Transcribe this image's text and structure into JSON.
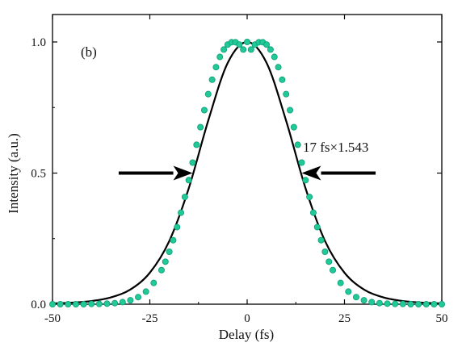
{
  "chart_data": {
    "type": "scatter",
    "panel_label": "(b)",
    "xlabel": "Delay (fs)",
    "ylabel": "Intensity (a.u.)",
    "xlim": [
      -50,
      50
    ],
    "ylim": [
      0,
      1.05
    ],
    "xticks": [
      -50,
      -25,
      0,
      25,
      50
    ],
    "xtick_labels": [
      "-50",
      "-25",
      "0",
      "25",
      "50"
    ],
    "yticks": [
      0.0,
      0.5,
      1.0
    ],
    "ytick_labels": [
      "0.0",
      "0.5",
      "1.0"
    ],
    "grid": false,
    "annotation": "17 fs×1.543",
    "arrows": [
      {
        "from": [
          -33,
          0.5
        ],
        "to": [
          -14,
          0.5
        ]
      },
      {
        "from": [
          33,
          0.5
        ],
        "to": [
          14,
          0.5
        ]
      }
    ],
    "series": [
      {
        "kind": "markers",
        "color": "#20c997",
        "x": [
          -50,
          -48,
          -46,
          -44,
          -42,
          -40,
          -38,
          -36,
          -34,
          -32,
          -30,
          -28,
          -26,
          -24,
          -22,
          -21,
          -20,
          -19,
          -18,
          -17,
          -16,
          -15,
          -14,
          -13,
          -12,
          -11,
          -10,
          -9,
          -8,
          -7,
          -6,
          -5,
          -4,
          -3,
          -2,
          -1,
          0,
          1,
          2,
          3,
          4,
          5,
          6,
          7,
          8,
          9,
          10,
          11,
          12,
          13,
          14,
          15,
          16,
          17,
          18,
          19,
          20,
          21,
          22,
          24,
          26,
          28,
          30,
          32,
          34,
          36,
          38,
          40,
          42,
          44,
          46,
          48,
          50
        ],
        "y": [
          0.0,
          0.0,
          0.0,
          0.0,
          0.0,
          0.001,
          0.001,
          0.002,
          0.004,
          0.008,
          0.015,
          0.027,
          0.048,
          0.081,
          0.13,
          0.162,
          0.2,
          0.244,
          0.294,
          0.349,
          0.409,
          0.473,
          0.54,
          0.608,
          0.675,
          0.74,
          0.801,
          0.856,
          0.904,
          0.943,
          0.971,
          0.99,
          0.999,
          0.999,
          0.99,
          0.971,
          1.0,
          0.971,
          0.99,
          0.999,
          0.999,
          0.99,
          0.971,
          0.943,
          0.904,
          0.856,
          0.801,
          0.74,
          0.675,
          0.608,
          0.54,
          0.473,
          0.409,
          0.349,
          0.294,
          0.244,
          0.2,
          0.162,
          0.13,
          0.081,
          0.048,
          0.027,
          0.015,
          0.008,
          0.004,
          0.002,
          0.001,
          0.001,
          0.0,
          0.0,
          0.0,
          0.0,
          0.0
        ]
      },
      {
        "kind": "line",
        "color": "#000000",
        "x": [
          -50,
          -45,
          -40,
          -35,
          -30,
          -25,
          -20,
          -15,
          -10,
          -5,
          0,
          5,
          10,
          15,
          20,
          25,
          30,
          35,
          40,
          45,
          50
        ],
        "y": [
          0.003,
          0.006,
          0.012,
          0.026,
          0.056,
          0.12,
          0.241,
          0.442,
          0.7,
          0.92,
          1.0,
          0.92,
          0.7,
          0.442,
          0.241,
          0.12,
          0.056,
          0.026,
          0.012,
          0.006,
          0.003
        ]
      }
    ]
  }
}
